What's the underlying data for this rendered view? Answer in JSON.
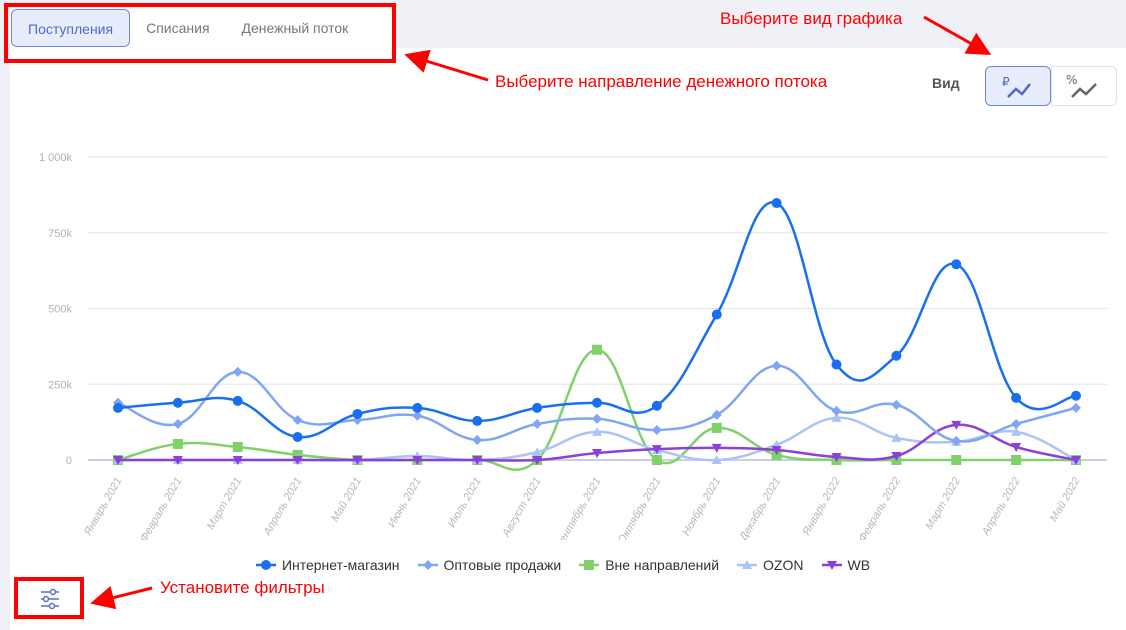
{
  "tabs": [
    {
      "label": "Поступления",
      "active": true
    },
    {
      "label": "Списания",
      "active": false
    },
    {
      "label": "Денежный поток",
      "active": false
    }
  ],
  "view": {
    "label": "Вид",
    "options": [
      {
        "icon": "ruble-chart-icon",
        "symbol": "₽",
        "active": true
      },
      {
        "icon": "percent-chart-icon",
        "symbol": "%",
        "active": false
      }
    ]
  },
  "annotations": {
    "view": "Выберите вид графика",
    "direction": "Выберите направление денежного потока",
    "filters": "Установите фильтры"
  },
  "filter_icon": "sliders-icon",
  "chart_data": {
    "type": "line",
    "smooth": true,
    "x": [
      "Январь 2021",
      "Февраль 2021",
      "Март 2021",
      "Апрель 2021",
      "Май 2021",
      "Июнь 2021",
      "Июль 2021",
      "Август 2021",
      "Сентябрь 2021",
      "Октябрь 2021",
      "Ноябрь 2021",
      "Декабрь 2021",
      "Январь 2022",
      "Февраль 2022",
      "Март 2022",
      "Апрель 2022",
      "Май 2022"
    ],
    "yticks": [
      {
        "v": 0,
        "label": "0"
      },
      {
        "v": 250,
        "label": "250k"
      },
      {
        "v": 500,
        "label": "500k"
      },
      {
        "v": 750,
        "label": "750k"
      },
      {
        "v": 1000,
        "label": "1 000k"
      }
    ],
    "ylim": [
      0,
      1000
    ],
    "grid": true,
    "legend": "bottom",
    "series": [
      {
        "name": "Интернет-магазин",
        "color": "#1a6ff0",
        "marker": "circle",
        "values": [
          172,
          189,
          195,
          76,
          152,
          172,
          129,
          172,
          189,
          179,
          480,
          848,
          315,
          344,
          646,
          205,
          212
        ]
      },
      {
        "name": "Оптовые продажи",
        "color": "#7fa6f5",
        "marker": "diamond",
        "values": [
          189,
          119,
          291,
          132,
          132,
          146,
          66,
          119,
          136,
          99,
          149,
          311,
          162,
          182,
          63,
          119,
          172
        ]
      },
      {
        "name": "Вне направлений",
        "color": "#7fd16a",
        "marker": "square",
        "values": [
          0,
          53,
          43,
          17,
          0,
          0,
          0,
          0,
          364,
          0,
          106,
          17,
          0,
          0,
          0,
          0,
          0
        ]
      },
      {
        "name": "OZON",
        "color": "#aac4f7",
        "marker": "triangle",
        "values": [
          0,
          0,
          0,
          0,
          0,
          13,
          0,
          26,
          93,
          33,
          0,
          50,
          139,
          73,
          60,
          93,
          0
        ]
      },
      {
        "name": "WB",
        "color": "#8c3fd9",
        "marker": "triangle-down",
        "values": [
          0,
          0,
          0,
          0,
          0,
          0,
          0,
          0,
          23,
          36,
          40,
          33,
          10,
          13,
          116,
          43,
          0
        ]
      }
    ]
  }
}
